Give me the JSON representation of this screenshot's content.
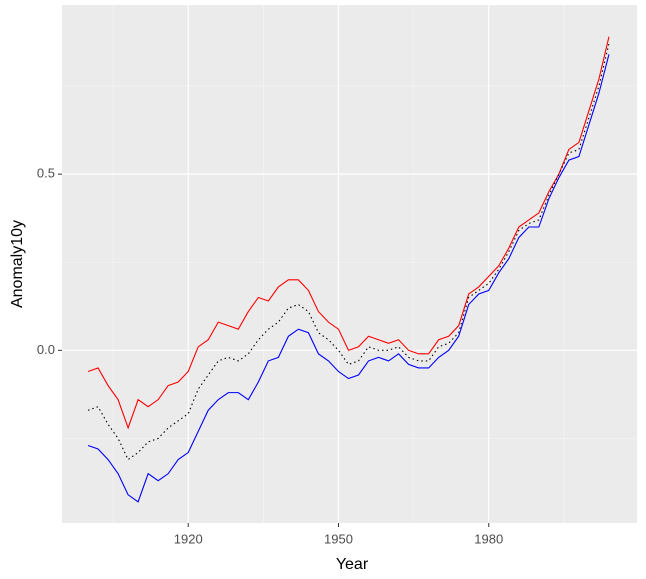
{
  "chart_data": {
    "type": "line",
    "x_label": "Year",
    "y_label": "Anomaly10y",
    "x": [
      1900,
      1902,
      1904,
      1906,
      1908,
      1910,
      1912,
      1914,
      1916,
      1918,
      1920,
      1922,
      1924,
      1926,
      1928,
      1930,
      1932,
      1934,
      1936,
      1938,
      1940,
      1942,
      1944,
      1946,
      1948,
      1950,
      1952,
      1954,
      1956,
      1958,
      1960,
      1962,
      1964,
      1966,
      1968,
      1970,
      1972,
      1974,
      1976,
      1978,
      1980,
      1982,
      1984,
      1986,
      1988,
      1990,
      1992,
      1994,
      1996,
      1998,
      2000,
      2002,
      2004
    ],
    "series": [
      {
        "color": "#ff0000",
        "line": "solid",
        "values": [
          -0.06,
          -0.05,
          -0.1,
          -0.14,
          -0.22,
          -0.14,
          -0.16,
          -0.14,
          -0.1,
          -0.09,
          -0.06,
          0.01,
          0.03,
          0.08,
          0.07,
          0.06,
          0.11,
          0.15,
          0.14,
          0.18,
          0.2,
          0.2,
          0.17,
          0.11,
          0.08,
          0.06,
          0.0,
          0.01,
          0.04,
          0.03,
          0.02,
          0.03,
          0.0,
          -0.01,
          -0.01,
          0.03,
          0.04,
          0.07,
          0.16,
          0.18,
          0.21,
          0.24,
          0.29,
          0.35,
          0.37,
          0.39,
          0.45,
          0.5,
          0.57,
          0.59,
          0.68,
          0.77,
          0.89
        ]
      },
      {
        "color": "#000000",
        "line": "dotted",
        "values": [
          -0.17,
          -0.16,
          -0.21,
          -0.25,
          -0.31,
          -0.29,
          -0.26,
          -0.25,
          -0.22,
          -0.2,
          -0.18,
          -0.11,
          -0.07,
          -0.03,
          -0.02,
          -0.03,
          -0.01,
          0.03,
          0.06,
          0.08,
          0.12,
          0.13,
          0.11,
          0.05,
          0.03,
          0.0,
          -0.04,
          -0.03,
          0.01,
          0.0,
          0.0,
          0.01,
          -0.02,
          -0.03,
          -0.03,
          0.01,
          0.02,
          0.05,
          0.15,
          0.17,
          0.19,
          0.23,
          0.28,
          0.34,
          0.36,
          0.37,
          0.44,
          0.5,
          0.56,
          0.57,
          0.66,
          0.75,
          0.87
        ]
      },
      {
        "color": "#0000ff",
        "line": "solid",
        "values": [
          -0.27,
          -0.28,
          -0.31,
          -0.35,
          -0.41,
          -0.43,
          -0.35,
          -0.37,
          -0.35,
          -0.31,
          -0.29,
          -0.23,
          -0.17,
          -0.14,
          -0.12,
          -0.12,
          -0.14,
          -0.09,
          -0.03,
          -0.02,
          0.04,
          0.06,
          0.05,
          -0.01,
          -0.03,
          -0.06,
          -0.08,
          -0.07,
          -0.03,
          -0.02,
          -0.03,
          -0.01,
          -0.04,
          -0.05,
          -0.05,
          -0.02,
          0.0,
          0.04,
          0.13,
          0.16,
          0.17,
          0.22,
          0.26,
          0.32,
          0.35,
          0.35,
          0.43,
          0.49,
          0.54,
          0.55,
          0.64,
          0.73,
          0.84
        ]
      }
    ],
    "xlim": [
      1894.8,
      2009.6
    ],
    "xticks": [
      1920,
      1950,
      1980
    ],
    "xminor": [
      1905,
      1935,
      1965,
      1995
    ],
    "ylim": [
      -0.49,
      0.98
    ],
    "yticks": [
      {
        "value": 0,
        "label": "0.0"
      },
      0.5
    ],
    "yminor": [
      -0.25,
      0.25,
      0.75
    ],
    "grid": true
  }
}
